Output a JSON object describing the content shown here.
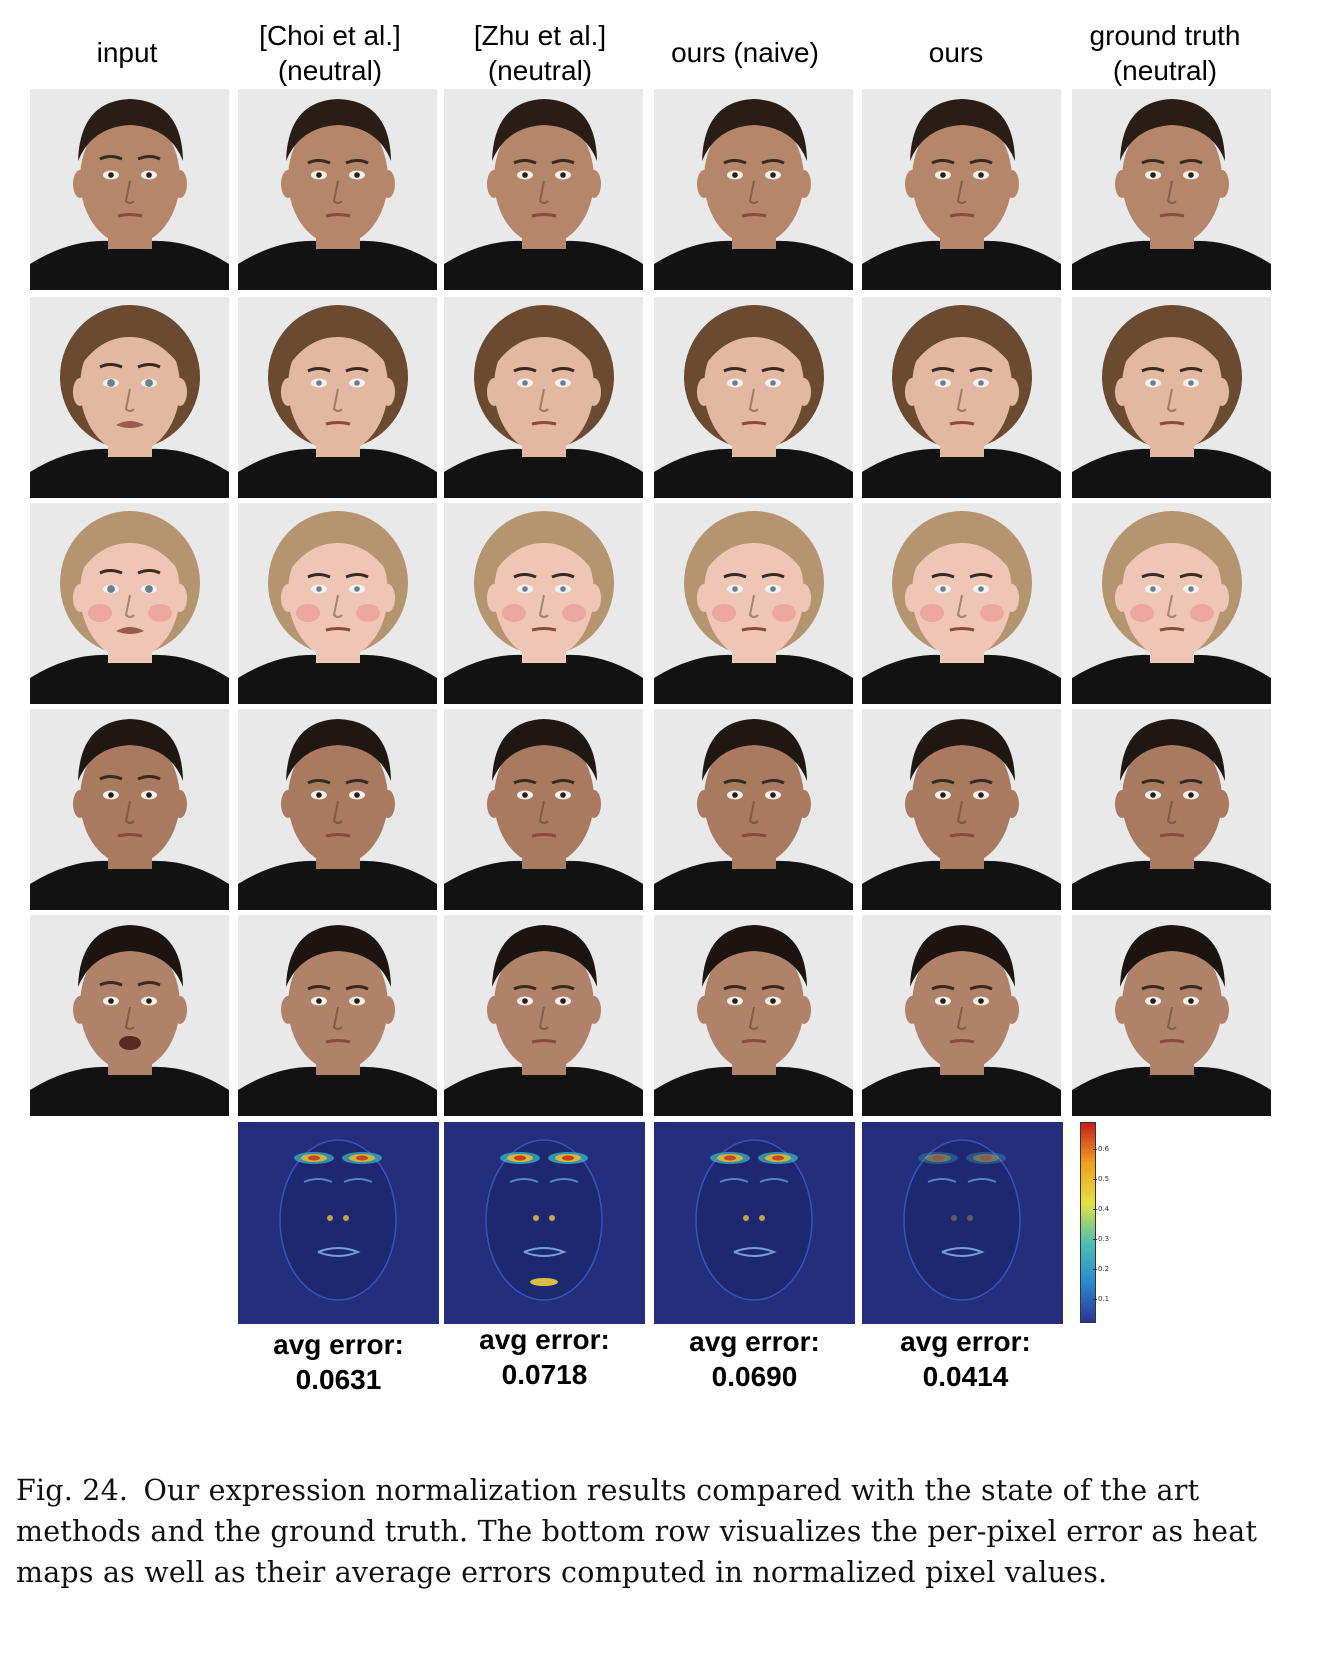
{
  "columns": [
    {
      "line1": "input",
      "line2": ""
    },
    {
      "line1": "[Choi et al.]",
      "line2": "(neutral)"
    },
    {
      "line1": "[Zhu et al.]",
      "line2": "(neutral)"
    },
    {
      "line1": "ours (naive)",
      "line2": ""
    },
    {
      "line1": "ours",
      "line2": ""
    },
    {
      "line1": "ground truth",
      "line2": "(neutral)"
    }
  ],
  "errors": [
    {
      "label": "avg error:",
      "value": "0.0631"
    },
    {
      "label": "avg error:",
      "value": "0.0718"
    },
    {
      "label": "avg error:",
      "value": "0.0690"
    },
    {
      "label": "avg error:",
      "value": "0.0414"
    }
  ],
  "colorbar": {
    "ticks": [
      "0.6",
      "0.5",
      "0.4",
      "0.3",
      "0.2",
      "0.1"
    ],
    "colors": [
      "#c81e1e",
      "#f0a020",
      "#e8e040",
      "#50c0b0",
      "#2a8ad0",
      "#2a3590"
    ]
  },
  "caption": {
    "label": "Fig. 24.",
    "text": "Our expression normalization results compared with the state of the art methods and the ground truth. The bottom row visualizes the per-pixel error as heat maps as well as their average errors computed in normalized pixel values."
  },
  "rows": [
    {
      "subject": "man-1",
      "skin": "#b5866a",
      "hair": "#2a1d15"
    },
    {
      "subject": "woman-1",
      "skin": "#e2b8a0",
      "hair": "#6b4a32"
    },
    {
      "subject": "woman-2",
      "skin": "#efc6b6",
      "hair": "#b59470"
    },
    {
      "subject": "man-2",
      "skin": "#a97a60",
      "hair": "#1f1712"
    },
    {
      "subject": "man-3",
      "skin": "#b0826a",
      "hair": "#1c1410"
    }
  ]
}
